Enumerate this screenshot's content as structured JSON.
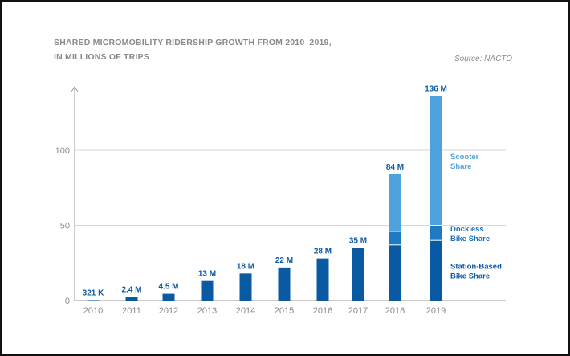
{
  "chart_data": {
    "type": "bar",
    "title_line1": "SHARED MICROMOBILITY RIDERSHIP GROWTH FROM 2010–2019,",
    "title_line2": "IN MILLIONS OF TRIPS",
    "source": "Source: NACTO",
    "categories": [
      "2010",
      "2011",
      "2012",
      "2013",
      "2014",
      "2015",
      "2016",
      "2017",
      "2018",
      "2019"
    ],
    "ylim": [
      0,
      140
    ],
    "yticks": [
      0,
      50,
      100
    ],
    "grid": true,
    "series": [
      {
        "name": "Station-Based Bike Share",
        "values": [
          0.321,
          2.4,
          4.5,
          13,
          18,
          22,
          28,
          35,
          37,
          40
        ],
        "color": "#0a5aa3"
      },
      {
        "name": "Dockless Bike Share",
        "values": [
          0,
          0,
          0,
          0,
          0,
          0,
          0,
          0,
          9,
          10
        ],
        "color": "#1f7ac4"
      },
      {
        "name": "Scooter Share",
        "values": [
          0,
          0,
          0,
          0,
          0,
          0,
          0,
          0,
          38,
          86
        ],
        "color": "#4ea3dd"
      }
    ],
    "data_labels": [
      "321 K",
      "2.4 M",
      "4.5 M",
      "13 M",
      "18 M",
      "22 M",
      "28 M",
      "35 M",
      "84 M",
      "136 M"
    ],
    "legend_labels": [
      {
        "series": 2,
        "line1": "Scooter",
        "line2": "Share",
        "color": "#4ea3dd"
      },
      {
        "series": 1,
        "line1": "Dockless",
        "line2": "Bike Share",
        "color": "#1f6fb8"
      },
      {
        "series": 0,
        "line1": "Station-Based",
        "line2": "Bike Share",
        "color": "#0a5aa3"
      }
    ],
    "colors": {
      "axis": "#9a9a9a",
      "grid": "#d6d6d6",
      "label": "#0a5aa3",
      "tick": "#8a8a8a"
    }
  }
}
